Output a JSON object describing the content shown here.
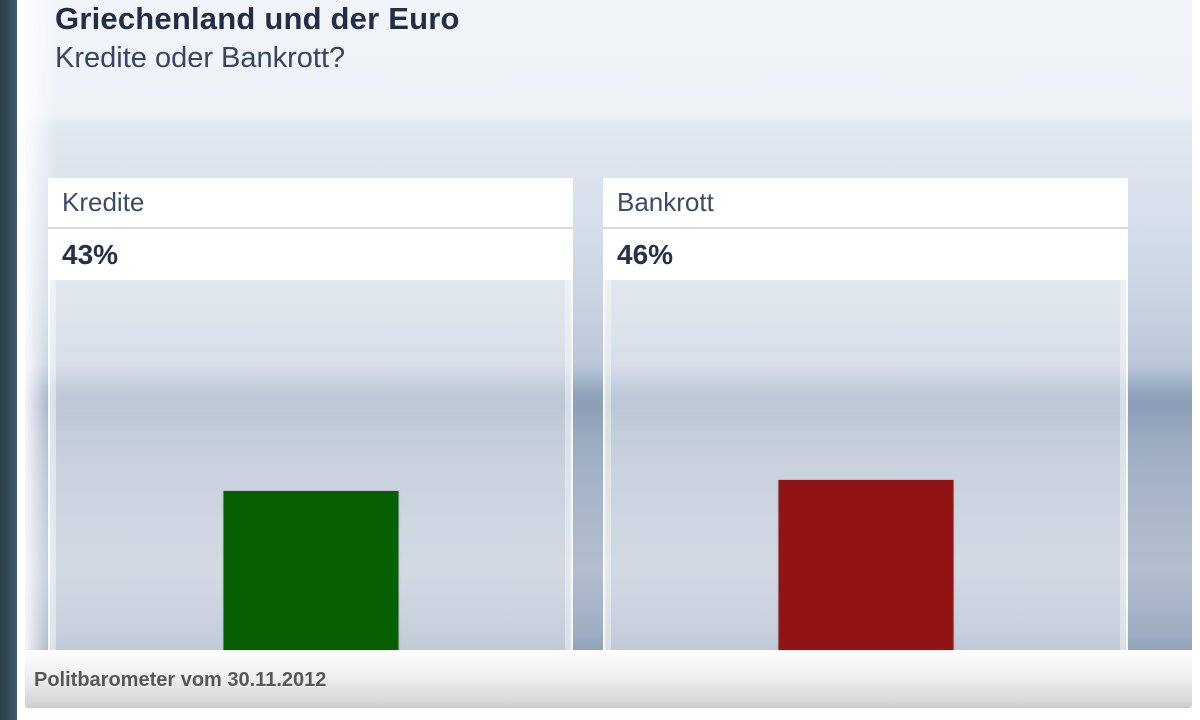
{
  "chart_data": {
    "type": "bar",
    "title": "Griechenland und der Euro",
    "subtitle": "Kredite oder Bankrott?",
    "categories": [
      "Kredite",
      "Bankrott"
    ],
    "values": [
      43,
      46
    ],
    "value_labels": [
      "43%",
      "46%"
    ],
    "colors": [
      "#075f04",
      "#911414"
    ],
    "unit": "%",
    "ylim": [
      0,
      100
    ],
    "grid": false,
    "legend": false,
    "source": "Politbarometer vom 30.11.2012"
  }
}
